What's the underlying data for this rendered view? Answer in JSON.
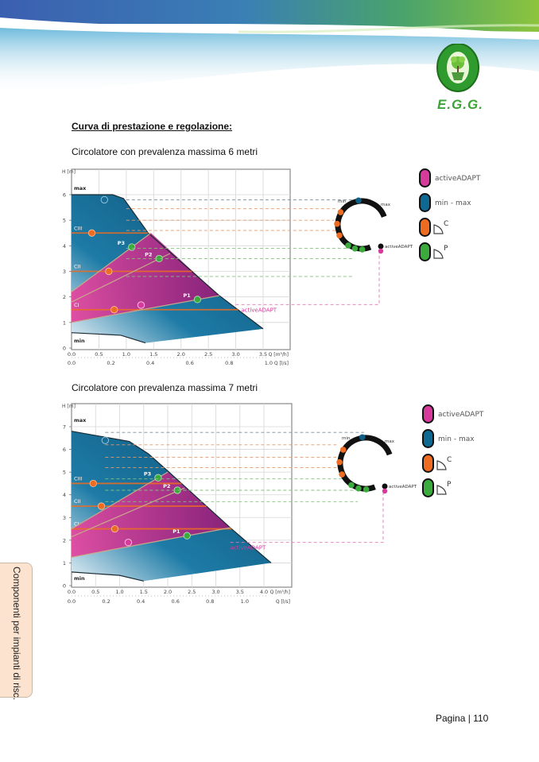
{
  "header": {
    "logo_text": "E.G.G.",
    "logo_icon": "tree-egg-icon"
  },
  "section_title": "Curva di prestazione e regolazione:",
  "side_tab": "Componenti per impianti di risc.",
  "footer": {
    "page_label": "Pagina | 110"
  },
  "legend": [
    {
      "color": "#d63a9a",
      "label": "activeADAPT"
    },
    {
      "color": "#0e6a93",
      "label": "min - max"
    },
    {
      "color": "#ee6c22",
      "label": "C",
      "icon": "constant-pressure-icon"
    },
    {
      "color": "#3aab3c",
      "label": "P",
      "icon": "proportional-pressure-icon"
    }
  ],
  "colors": {
    "blue": "#0e5f86",
    "magenta": "#b2287f",
    "orange": "#ee6c22",
    "green": "#3aab3c",
    "pink": "#d63a9a"
  },
  "chart_data": [
    {
      "type": "area",
      "title": "Circolatore con prevalenza massima 6 metri",
      "ylabel": "H [m]",
      "xlabel": "Q [m³/h]",
      "xlabel2": "Q [l/s]",
      "xlim": [
        0,
        3.5
      ],
      "ylim": [
        0,
        6
      ],
      "x_ticks": [
        "0.0",
        "0.5",
        "1.0",
        "1.5",
        "2.0",
        "2.5",
        "3.0",
        "3.5"
      ],
      "x2_ticks": [
        {
          "v": 0.0,
          "l": "0.0"
        },
        {
          "v": 0.2,
          "l": "0.2"
        },
        {
          "v": 0.4,
          "l": "0.4"
        },
        {
          "v": 0.6,
          "l": "0.6"
        },
        {
          "v": 0.8,
          "l": "0.8"
        },
        {
          "v": 1.0,
          "l": "1.0"
        }
      ],
      "y_ticks": [
        "0",
        "1",
        "2",
        "3",
        "4",
        "5",
        "6"
      ],
      "grid": true,
      "curves": {
        "max": [
          [
            0,
            6
          ],
          [
            0.75,
            6
          ],
          [
            0.95,
            5.85
          ],
          [
            1.4,
            4.5
          ],
          [
            2.7,
            2.05
          ],
          [
            3.5,
            0.75
          ]
        ],
        "min": [
          [
            0,
            0.6
          ],
          [
            0.9,
            0.5
          ],
          [
            1.35,
            0.2
          ]
        ],
        "bottom": [
          [
            1.35,
            0.2
          ],
          [
            3.5,
            0.75
          ]
        ]
      },
      "labels": {
        "max": "max",
        "min": "min",
        "activeADAPT": "activeADAPT"
      },
      "constant_lines": [
        {
          "name": "CIII",
          "h": 4.5,
          "point_q": 0.37
        },
        {
          "name": "CII",
          "h": 3.0,
          "point_q": 0.68
        },
        {
          "name": "CI",
          "h": 1.5,
          "point_q": 0.78
        }
      ],
      "proportional_lines": [
        {
          "name": "P3",
          "from": [
            0,
            2.2
          ],
          "to": [
            1.45,
            4.5
          ],
          "point": [
            1.1,
            3.95
          ]
        },
        {
          "name": "P2",
          "from": [
            0,
            1.8
          ],
          "to": [
            1.8,
            3.7
          ],
          "point": [
            1.6,
            3.5
          ]
        },
        {
          "name": "P1",
          "from": [
            0,
            1.0
          ],
          "to": [
            2.7,
            2.05
          ],
          "point": [
            2.3,
            1.9
          ]
        }
      ],
      "activeADAPT_point": [
        1.27,
        1.68
      ],
      "max_point": [
        0.6,
        5.8
      ],
      "dial_levels": {
        "max": 5.8,
        "C": [
          5.45,
          5.0,
          4.6
        ],
        "P": [
          3.9,
          3.5,
          2.8
        ],
        "activeADAPT": 1.7
      },
      "dial_labels": {
        "min": "min",
        "max": "max",
        "activeADAPT": "activeADAPT"
      }
    },
    {
      "type": "area",
      "title": "Circolatore con prevalenza massima 7 metri",
      "ylabel": "H [m]",
      "xlabel": "Q [m³/h]",
      "xlabel2": "Q [l/s]",
      "xlim": [
        0,
        4.0
      ],
      "ylim": [
        0,
        7
      ],
      "x_ticks": [
        "0.0",
        "0.5",
        "1.0",
        "1.5",
        "2.0",
        "2.5",
        "3.0",
        "3.5",
        "4.0"
      ],
      "x2_ticks": [
        {
          "v": 0.0,
          "l": "0.0"
        },
        {
          "v": 0.2,
          "l": "0.2"
        },
        {
          "v": 0.4,
          "l": "0.4"
        },
        {
          "v": 0.6,
          "l": "0.6"
        },
        {
          "v": 0.8,
          "l": "0.8"
        },
        {
          "v": 1.0,
          "l": "1.0"
        }
      ],
      "y_ticks": [
        "0",
        "1",
        "2",
        "3",
        "4",
        "5",
        "6",
        "7"
      ],
      "grid": true,
      "curves": {
        "max": [
          [
            0,
            6.8
          ],
          [
            1.2,
            6.35
          ],
          [
            1.6,
            5.8
          ],
          [
            2.0,
            5.05
          ],
          [
            3.3,
            2.55
          ],
          [
            4.15,
            1.0
          ]
        ],
        "min": [
          [
            0,
            0.6
          ],
          [
            1.0,
            0.45
          ],
          [
            1.5,
            0.2
          ]
        ],
        "bottom": [
          [
            1.5,
            0.2
          ],
          [
            4.15,
            1.0
          ]
        ]
      },
      "labels": {
        "max": "max",
        "min": "min",
        "activeADAPT": "activeADAPT"
      },
      "constant_lines": [
        {
          "name": "CIII",
          "h": 4.5,
          "point_q": 0.45
        },
        {
          "name": "CII",
          "h": 3.5,
          "point_q": 0.62
        },
        {
          "name": "CI",
          "h": 2.5,
          "point_q": 0.9
        }
      ],
      "proportional_lines": [
        {
          "name": "P3",
          "from": [
            0,
            2.5
          ],
          "to": [
            2.0,
            5.0
          ],
          "point": [
            1.8,
            4.75
          ]
        },
        {
          "name": "P2",
          "from": [
            0,
            2.15
          ],
          "to": [
            2.35,
            4.3
          ],
          "point": [
            2.2,
            4.2
          ]
        },
        {
          "name": "P1",
          "from": [
            0,
            1.25
          ],
          "to": [
            3.3,
            2.55
          ],
          "point": [
            2.4,
            2.2
          ]
        }
      ],
      "activeADAPT_point": [
        1.18,
        1.9
      ],
      "max_point": [
        0.7,
        6.4
      ],
      "dial_levels": {
        "max": 6.75,
        "C": [
          6.2,
          5.65,
          5.2
        ],
        "P": [
          4.7,
          4.2,
          3.7
        ],
        "activeADAPT": 1.9
      },
      "dial_labels": {
        "min": "min",
        "max": "max",
        "activeADAPT": "activeADAPT"
      }
    }
  ]
}
